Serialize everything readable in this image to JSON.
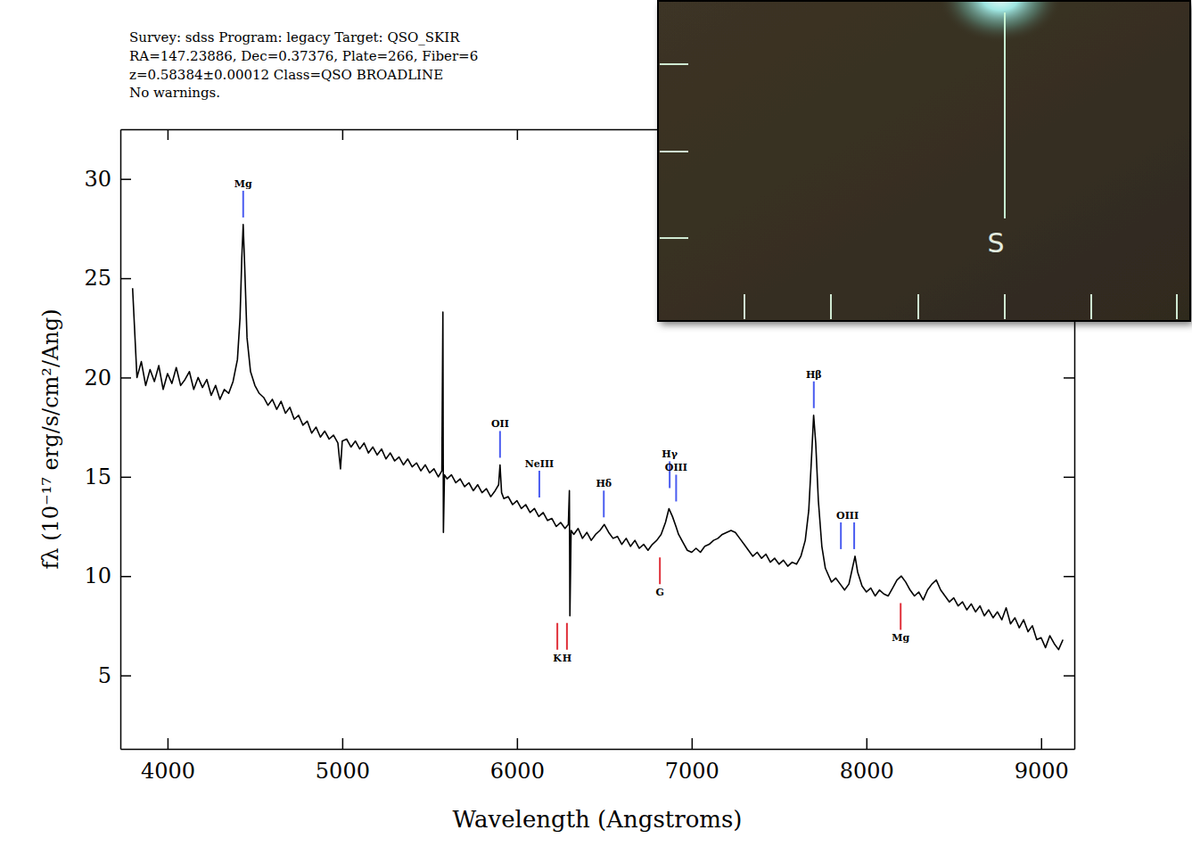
{
  "chart_data": {
    "type": "line",
    "header": [
      "Survey: sdss Program: legacy Target: QSO_SKIR",
      "RA=147.23886, Dec=0.37376, Plate=266, Fiber=6",
      "z=0.58384±0.00012 Class=QSO BROADLINE",
      "No warnings."
    ],
    "x_label": "Wavelength (Angstroms)",
    "y_label": "fλ (10⁻¹⁷ erg/s/cm²/Ang)",
    "xlim": [
      3730,
      9190
    ],
    "xticks": [
      4000,
      5000,
      6000,
      7000,
      8000,
      9000
    ],
    "ylim": [
      1.3,
      32.5
    ],
    "yticks": [
      5,
      10,
      15,
      20,
      25,
      30
    ],
    "color": "#000000",
    "x": [
      3800,
      3825,
      3850,
      3875,
      3900,
      3925,
      3950,
      3975,
      4000,
      4025,
      4050,
      4075,
      4100,
      4125,
      4150,
      4175,
      4200,
      4225,
      4250,
      4275,
      4300,
      4325,
      4350,
      4375,
      4400,
      4415,
      4425,
      4433,
      4442,
      4455,
      4475,
      4500,
      4525,
      4550,
      4575,
      4600,
      4625,
      4650,
      4675,
      4700,
      4725,
      4750,
      4775,
      4800,
      4825,
      4850,
      4875,
      4900,
      4925,
      4950,
      4975,
      4990,
      5000,
      5025,
      5050,
      5075,
      5100,
      5125,
      5150,
      5175,
      5200,
      5225,
      5250,
      5275,
      5300,
      5325,
      5350,
      5375,
      5400,
      5425,
      5450,
      5475,
      5500,
      5525,
      5550,
      5570,
      5576,
      5579,
      5585,
      5600,
      5625,
      5650,
      5675,
      5700,
      5725,
      5750,
      5775,
      5800,
      5825,
      5850,
      5875,
      5895,
      5903,
      5912,
      5925,
      5950,
      5975,
      6000,
      6025,
      6050,
      6075,
      6100,
      6125,
      6150,
      6175,
      6200,
      6225,
      6250,
      6275,
      6294,
      6300,
      6303,
      6310,
      6325,
      6350,
      6375,
      6400,
      6425,
      6450,
      6475,
      6500,
      6525,
      6550,
      6575,
      6600,
      6625,
      6650,
      6675,
      6700,
      6725,
      6750,
      6775,
      6800,
      6825,
      6850,
      6870,
      6890,
      6910,
      6925,
      6950,
      6975,
      7000,
      7025,
      7050,
      7075,
      7100,
      7125,
      7150,
      7175,
      7200,
      7225,
      7250,
      7275,
      7300,
      7325,
      7350,
      7375,
      7400,
      7425,
      7450,
      7475,
      7500,
      7525,
      7550,
      7575,
      7600,
      7625,
      7650,
      7670,
      7685,
      7698,
      7710,
      7725,
      7745,
      7765,
      7785,
      7800,
      7825,
      7850,
      7875,
      7900,
      7920,
      7935,
      7950,
      7975,
      8000,
      8025,
      8050,
      8075,
      8100,
      8125,
      8150,
      8175,
      8200,
      8225,
      8250,
      8275,
      8300,
      8325,
      8350,
      8375,
      8400,
      8425,
      8450,
      8475,
      8500,
      8525,
      8550,
      8575,
      8600,
      8625,
      8650,
      8675,
      8700,
      8725,
      8750,
      8775,
      8800,
      8825,
      8850,
      8875,
      8900,
      8925,
      8950,
      8975,
      9000,
      9025,
      9050,
      9075,
      9100,
      9125
    ],
    "values": [
      24.5,
      20.0,
      20.8,
      19.6,
      20.4,
      19.8,
      20.6,
      19.4,
      20.2,
      19.7,
      20.5,
      19.6,
      19.9,
      20.3,
      19.4,
      20.0,
      19.5,
      19.9,
      19.1,
      19.6,
      18.9,
      19.4,
      19.2,
      19.8,
      20.9,
      23.0,
      26.0,
      27.7,
      25.5,
      22.0,
      20.3,
      19.6,
      19.2,
      19.0,
      18.6,
      18.9,
      18.4,
      18.8,
      18.2,
      18.5,
      17.9,
      18.1,
      17.6,
      17.8,
      17.2,
      17.5,
      17.0,
      17.3,
      16.9,
      17.1,
      16.7,
      15.4,
      16.8,
      16.9,
      16.5,
      16.8,
      16.4,
      16.7,
      16.2,
      16.5,
      16.1,
      16.4,
      15.9,
      16.2,
      15.8,
      16.0,
      15.6,
      15.9,
      15.5,
      15.7,
      15.3,
      15.6,
      15.2,
      15.4,
      15.0,
      15.3,
      23.3,
      12.2,
      15.1,
      14.9,
      15.1,
      14.7,
      14.9,
      14.5,
      14.7,
      14.3,
      14.6,
      14.2,
      14.4,
      14.0,
      14.3,
      14.6,
      15.6,
      14.2,
      13.9,
      14.0,
      13.6,
      13.8,
      13.4,
      13.6,
      13.2,
      13.4,
      13.0,
      13.2,
      12.8,
      12.9,
      12.5,
      12.7,
      12.4,
      12.6,
      14.3,
      8.0,
      12.3,
      12.1,
      12.4,
      11.9,
      12.2,
      11.8,
      12.1,
      12.3,
      12.6,
      12.2,
      11.9,
      12.0,
      11.6,
      11.9,
      11.5,
      11.8,
      11.4,
      11.6,
      11.3,
      11.6,
      11.8,
      12.1,
      12.7,
      13.4,
      13.0,
      12.5,
      12.1,
      11.7,
      11.3,
      11.2,
      11.4,
      11.2,
      11.5,
      11.6,
      11.8,
      11.9,
      12.1,
      12.2,
      12.3,
      12.2,
      11.9,
      11.6,
      11.3,
      11.0,
      11.2,
      10.9,
      11.1,
      10.7,
      10.9,
      10.6,
      10.8,
      10.5,
      10.7,
      10.6,
      11.0,
      11.8,
      13.3,
      15.8,
      18.1,
      16.7,
      13.8,
      11.5,
      10.4,
      10.0,
      9.7,
      9.9,
      9.6,
      9.3,
      9.6,
      10.4,
      11.0,
      10.2,
      9.5,
      9.2,
      9.4,
      9.0,
      9.3,
      9.1,
      9.0,
      9.4,
      9.8,
      10.0,
      9.7,
      9.3,
      9.0,
      9.2,
      8.8,
      9.3,
      9.6,
      9.8,
      9.3,
      9.0,
      8.7,
      8.9,
      8.5,
      8.7,
      8.3,
      8.6,
      8.2,
      8.5,
      8.0,
      8.3,
      7.9,
      8.2,
      7.8,
      8.4,
      7.6,
      7.9,
      7.4,
      7.8,
      7.2,
      7.5,
      6.8,
      6.9,
      6.4,
      7.0,
      6.6,
      6.3,
      6.8
    ],
    "emission_lines": {
      "color": "#4a5cf0",
      "items": [
        {
          "label": "Mg",
          "wavelengths": [
            4433
          ]
        },
        {
          "label": "OII",
          "wavelengths": [
            5903
          ]
        },
        {
          "label": "NeIII",
          "wavelengths": [
            6128
          ]
        },
        {
          "label": "Hδ",
          "wavelengths": [
            6497
          ]
        },
        {
          "label": "Hγ",
          "wavelengths": [
            6874
          ]
        },
        {
          "label": "OIII",
          "wavelengths": [
            6911
          ]
        },
        {
          "label": "Hβ",
          "wavelengths": [
            7699
          ]
        },
        {
          "label": "OIII",
          "wavelengths": [
            7854,
            7930
          ]
        }
      ]
    },
    "absorption_lines": {
      "color": "#e0303a",
      "items": [
        {
          "label": "K",
          "wavelengths": [
            6231
          ]
        },
        {
          "label": "H",
          "wavelengths": [
            6286
          ]
        },
        {
          "label": "G",
          "wavelengths": [
            6818
          ]
        },
        {
          "label": "Mg",
          "wavelengths": [
            8196
          ]
        }
      ]
    }
  },
  "inset": {
    "label": "S"
  }
}
